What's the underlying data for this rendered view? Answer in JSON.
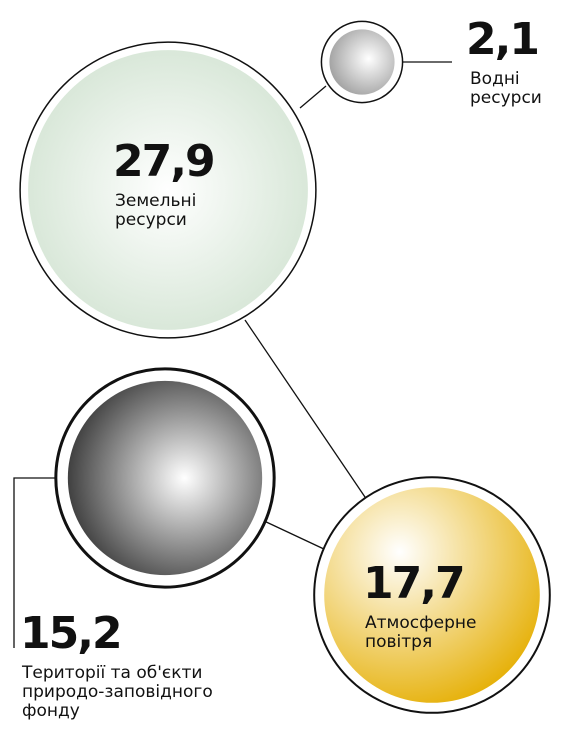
{
  "chart_data": {
    "type": "bubble",
    "categories": [
      "Земельні ресурси",
      "Водні ресурси",
      "Території та об'єкти природо-заповідного фонду",
      "Атмосферне повітря"
    ],
    "values": [
      27.9,
      2.1,
      15.2,
      17.7
    ],
    "value_labels": [
      "27,9",
      "2,1",
      "15,2",
      "17,7"
    ],
    "colors": [
      "#c6dcc6",
      "#8e8e8e",
      "#111111",
      "#e6b10a"
    ]
  }
}
